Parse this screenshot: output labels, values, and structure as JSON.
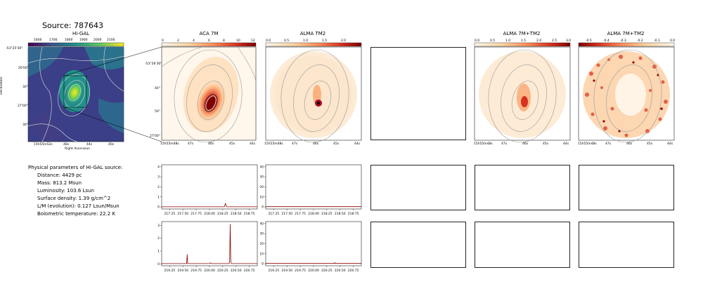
{
  "source_title": "Source: 787643",
  "panels": {
    "higal": {
      "title": "Hi-GAL",
      "colorbar_ticks": [
        "1600",
        "1700",
        "1800",
        "1900",
        "2000",
        "2100"
      ],
      "dec_ticks": [
        "-53°25'30\"",
        "26'00\"",
        "30\"",
        "27'00\"",
        "30\""
      ],
      "ra_ticks": [
        "15h55m52s",
        "48s",
        "44s",
        "40s"
      ],
      "xlabel": "Right Ascension",
      "ylabel": "Declination"
    },
    "aca7m": {
      "title": "ACA 7M",
      "colorbar_ticks": [
        "0",
        "2",
        "4",
        "6",
        "8",
        "10",
        "12"
      ],
      "dec_ticks": [
        "-53°26'30\"",
        "40\"",
        "50\"",
        "27'00\""
      ],
      "ra_ticks": [
        "15h55m48s",
        "47s",
        "46s",
        "45s",
        "44s"
      ]
    },
    "almatm2": {
      "title": "ALMA TM2",
      "colorbar_ticks": [
        "0.0",
        "0.5",
        "1.0",
        "1.5",
        "2.0"
      ],
      "ra_ticks": [
        "15h55m48s",
        "47s",
        "46s",
        "45s",
        "44s"
      ]
    },
    "alma7mtm2": {
      "title": "ALMA 7M+TM2",
      "colorbar_ticks": [
        "0.0",
        "0.5",
        "1.0",
        "1.5",
        "2.0",
        "2.5",
        "3.0"
      ],
      "ra_ticks": [
        "15h55m48s",
        "47s",
        "46s",
        "45s",
        "44s"
      ]
    },
    "alma7mtm2_neg": {
      "title": "ALMA 7M+TM2",
      "colorbar_ticks": [
        "-0.5",
        "-0.4",
        "-0.3",
        "-0.2",
        "-0.1",
        "0.0"
      ],
      "ra_ticks": [
        "15h55m48s",
        "47s",
        "46s",
        "45s",
        "44s"
      ]
    }
  },
  "parameters": {
    "heading": "Physical parameters of Hi-GAL source:",
    "items": [
      "Distance: 4429 pc",
      "Mass: 813.2 Msun",
      "Luminosity: 103.6 Lsun",
      "Surface density: 1.39 g/cm^2",
      "L/M (evolution): 0.127 Lsun/Msun",
      "Bolometric temperature: 22.2 K"
    ]
  },
  "chart_data": [
    {
      "type": "line",
      "panel": "spectrum-aca-row1",
      "x_ticks": [
        "217.25",
        "217.50",
        "217.75",
        "218.00",
        "218.25",
        "218.50",
        "218.75"
      ],
      "y_ticks": [
        "0",
        "1",
        "2",
        "3",
        "4"
      ],
      "xlim": [
        217.1,
        218.9
      ],
      "ylim": [
        -0.2,
        4.2
      ],
      "series": [
        {
          "color": "#8b0000",
          "x": [
            217.1,
            218.28,
            218.3,
            218.32,
            218.9
          ],
          "y": [
            0.02,
            0.02,
            0.35,
            0.02,
            0.02
          ]
        }
      ]
    },
    {
      "type": "line",
      "panel": "spectrum-alma-row1",
      "x_ticks": [
        "217.25",
        "217.50",
        "217.75",
        "218.00",
        "218.25",
        "218.50",
        "218.75"
      ],
      "y_ticks": [
        "0",
        "10",
        "20",
        "30",
        "40"
      ],
      "xlim": [
        217.1,
        218.9
      ],
      "ylim": [
        -2,
        42
      ],
      "series": [
        {
          "color": "#8b0000",
          "x": [
            217.1,
            218.9
          ],
          "y": [
            0.3,
            0.3
          ]
        }
      ]
    },
    {
      "type": "line",
      "panel": "spectrum-aca-row2",
      "x_ticks": [
        "219.25",
        "219.50",
        "219.75",
        "220.00",
        "220.25",
        "220.50",
        "220.75"
      ],
      "y_ticks": [
        "0",
        "1",
        "2",
        "3"
      ],
      "xlim": [
        219.1,
        220.9
      ],
      "ylim": [
        -0.15,
        3.3
      ],
      "series": [
        {
          "color": "#8b0000",
          "x": [
            219.1,
            219.57,
            219.58,
            219.59,
            220.0,
            220.02,
            220.04,
            220.37,
            220.38,
            220.39,
            220.4,
            220.41,
            220.9
          ],
          "y": [
            0.02,
            0.02,
            0.75,
            0.02,
            0.02,
            0.08,
            0.02,
            0.02,
            0.3,
            3.1,
            0.3,
            0.02,
            0.02
          ]
        }
      ]
    },
    {
      "type": "line",
      "panel": "spectrum-alma-row2",
      "x_ticks": [
        "219.25",
        "219.50",
        "219.75",
        "220.00",
        "220.25",
        "220.50",
        "220.75"
      ],
      "y_ticks": [
        "0",
        "10",
        "20",
        "30",
        "40"
      ],
      "xlim": [
        219.1,
        220.9
      ],
      "ylim": [
        -2,
        42
      ],
      "series": [
        {
          "color": "#8b0000",
          "x": [
            219.1,
            220.39,
            220.4,
            220.41,
            220.9
          ],
          "y": [
            0.3,
            0.3,
            1.2,
            0.3,
            0.3
          ]
        }
      ]
    }
  ]
}
